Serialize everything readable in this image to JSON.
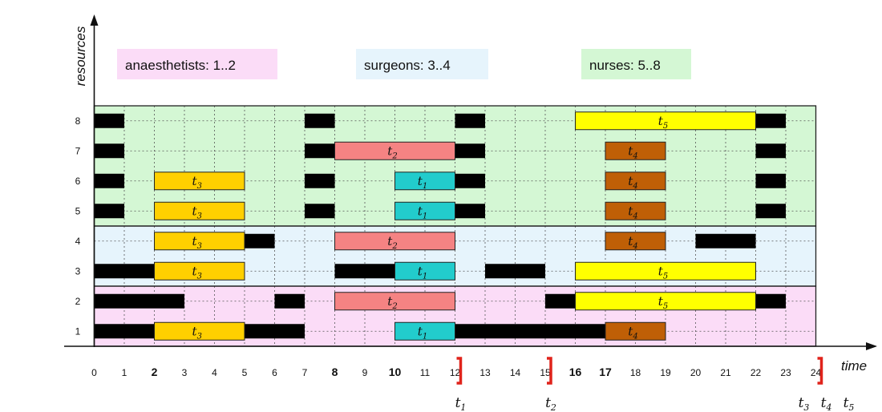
{
  "chart_data": {
    "type": "gantt",
    "axes": {
      "x_label": "time",
      "y_label": "resources",
      "x_ticks": [
        0,
        1,
        2,
        3,
        4,
        5,
        6,
        7,
        8,
        9,
        10,
        11,
        12,
        13,
        14,
        15,
        16,
        17,
        18,
        19,
        20,
        21,
        22,
        23,
        24
      ],
      "bold_ticks": [
        2,
        8,
        10,
        16,
        17
      ],
      "x_range": [
        0,
        24
      ],
      "y_ticks": [
        1,
        2,
        3,
        4,
        5,
        6,
        7,
        8
      ]
    },
    "groups": [
      {
        "label": "anaesthetists: 1..2",
        "resources": [
          1,
          2
        ],
        "color": "#fbdcf7"
      },
      {
        "label": "surgeons: 3..4",
        "resources": [
          3,
          4
        ],
        "color": "#e6f4fc"
      },
      {
        "label": "nurses: 5..8",
        "resources": [
          5,
          6,
          7,
          8
        ],
        "color": "#d4f7d4"
      }
    ],
    "task_colors": {
      "t1": "#22cccc",
      "t2": "#f58383",
      "t3": "#ffd000",
      "t4": "#bf5f06",
      "t5": "#ffff00"
    },
    "tasks": [
      {
        "id": "t1",
        "base": "t",
        "sub": "1",
        "start": 10,
        "end": 12,
        "resources": [
          1,
          3,
          5,
          6
        ]
      },
      {
        "id": "t2",
        "base": "t",
        "sub": "2",
        "start": 8,
        "end": 12,
        "resources": [
          2,
          4,
          7
        ]
      },
      {
        "id": "t3",
        "base": "t",
        "sub": "3",
        "start": 2,
        "end": 5,
        "resources": [
          1,
          3,
          4,
          5,
          6
        ]
      },
      {
        "id": "t4",
        "base": "t",
        "sub": "4",
        "start": 17,
        "end": 19,
        "resources": [
          1,
          4,
          5,
          6,
          7
        ]
      },
      {
        "id": "t5",
        "base": "t",
        "sub": "5",
        "start": 16,
        "end": 22,
        "resources": [
          2,
          3,
          8
        ]
      }
    ],
    "unavailable": [
      {
        "resource": 1,
        "start": 0,
        "end": 2
      },
      {
        "resource": 1,
        "start": 5,
        "end": 7
      },
      {
        "resource": 1,
        "start": 12,
        "end": 17
      },
      {
        "resource": 2,
        "start": 0,
        "end": 3
      },
      {
        "resource": 2,
        "start": 6,
        "end": 7
      },
      {
        "resource": 2,
        "start": 15,
        "end": 16
      },
      {
        "resource": 2,
        "start": 22,
        "end": 23
      },
      {
        "resource": 3,
        "start": 0,
        "end": 2
      },
      {
        "resource": 3,
        "start": 8,
        "end": 10
      },
      {
        "resource": 3,
        "start": 13,
        "end": 15
      },
      {
        "resource": 4,
        "start": 5,
        "end": 6
      },
      {
        "resource": 4,
        "start": 20,
        "end": 22
      },
      {
        "resource": 5,
        "start": 0,
        "end": 1
      },
      {
        "resource": 5,
        "start": 7,
        "end": 8
      },
      {
        "resource": 5,
        "start": 12,
        "end": 13
      },
      {
        "resource": 5,
        "start": 22,
        "end": 23
      },
      {
        "resource": 6,
        "start": 0,
        "end": 1
      },
      {
        "resource": 6,
        "start": 7,
        "end": 8
      },
      {
        "resource": 6,
        "start": 12,
        "end": 13
      },
      {
        "resource": 6,
        "start": 22,
        "end": 23
      },
      {
        "resource": 7,
        "start": 0,
        "end": 1
      },
      {
        "resource": 7,
        "start": 7,
        "end": 8
      },
      {
        "resource": 7,
        "start": 12,
        "end": 13
      },
      {
        "resource": 7,
        "start": 22,
        "end": 23
      },
      {
        "resource": 8,
        "start": 0,
        "end": 1
      },
      {
        "resource": 8,
        "start": 7,
        "end": 8
      },
      {
        "resource": 8,
        "start": 12,
        "end": 13
      },
      {
        "resource": 8,
        "start": 22,
        "end": 23
      }
    ],
    "deadlines": [
      {
        "time": 12,
        "labels": [
          {
            "base": "t",
            "sub": "1"
          }
        ]
      },
      {
        "time": 15,
        "labels": [
          {
            "base": "t",
            "sub": "2"
          }
        ]
      },
      {
        "time": 24,
        "labels": [
          {
            "base": "t",
            "sub": "3"
          },
          {
            "base": "t",
            "sub": "4"
          },
          {
            "base": "t",
            "sub": "5"
          }
        ]
      }
    ],
    "colors": {
      "unavailable": "#000000",
      "deadline": "#e0231b",
      "grid": "#555555"
    }
  }
}
